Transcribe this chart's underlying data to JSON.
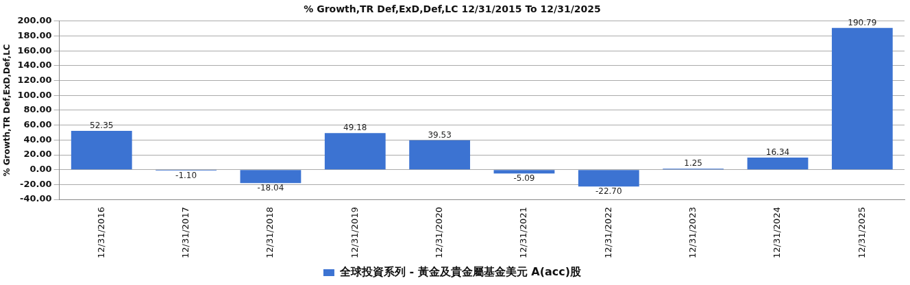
{
  "chart_data": {
    "type": "bar",
    "title": "% Growth,TR Def,ExD,Def,LC 12/31/2015 To 12/31/2025",
    "ylabel": "% Growth,TR Def,ExD,Def,LC",
    "categories": [
      "12/31/2016",
      "12/31/2017",
      "12/31/2018",
      "12/31/2019",
      "12/31/2020",
      "12/31/2021",
      "12/31/2022",
      "12/31/2023",
      "12/31/2024",
      "12/31/2025"
    ],
    "series": [
      {
        "name": "全球投資系列 - 黃金及貴金屬基金美元 A(acc)股",
        "color": "#3c73d2",
        "values": [
          52.35,
          -1.1,
          -18.04,
          49.18,
          39.53,
          -5.09,
          -22.7,
          1.25,
          16.34,
          190.79
        ],
        "value_labels": [
          "52.35",
          "-1.10",
          "-18.04",
          "49.18",
          "39.53",
          "-5.09",
          "-22.70",
          "1.25",
          "16.34",
          "190.79"
        ]
      }
    ],
    "ylim": [
      -40,
      200
    ],
    "yticks": [
      {
        "value": -40,
        "label": "-40.00"
      },
      {
        "value": -20,
        "label": "-20.00"
      },
      {
        "value": 0,
        "label": "0.00"
      },
      {
        "value": 20,
        "label": "20.00"
      },
      {
        "value": 40,
        "label": "40.00"
      },
      {
        "value": 60,
        "label": "60.00"
      },
      {
        "value": 80,
        "label": "80.00"
      },
      {
        "value": 100,
        "label": "100.00"
      },
      {
        "value": 120,
        "label": "120.00"
      },
      {
        "value": 140,
        "label": "140.00"
      },
      {
        "value": 160,
        "label": "160.00"
      },
      {
        "value": 180,
        "label": "180.00"
      },
      {
        "value": 200,
        "label": "200.00"
      }
    ],
    "grid": "y",
    "legend": "bottom"
  }
}
